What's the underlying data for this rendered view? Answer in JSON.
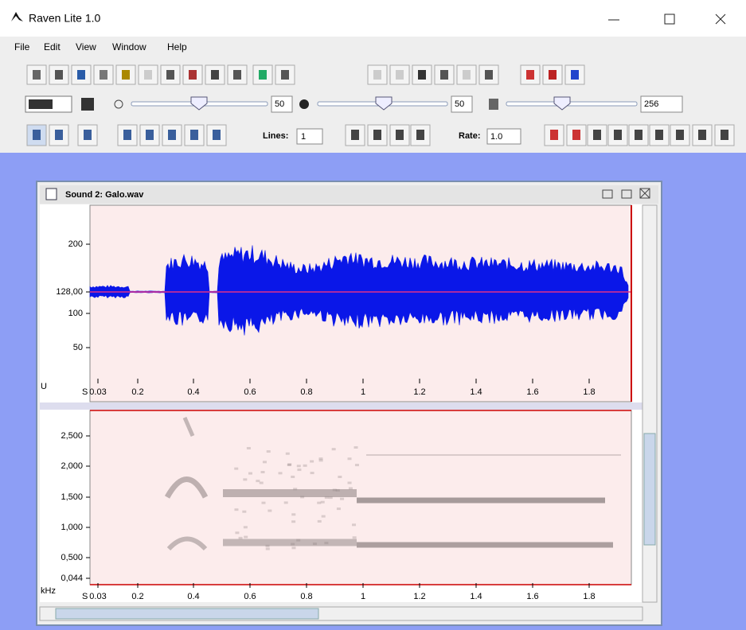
{
  "window": {
    "title": "Raven Lite 1.0"
  },
  "menu": [
    "File",
    "Edit",
    "View",
    "Window",
    "Help"
  ],
  "toolbar": {
    "brightness": "50",
    "contrast": "50",
    "resolution": "256",
    "lines_label": "Lines:",
    "lines": "1",
    "rate_label": "Rate:",
    "rate": "1.0"
  },
  "sound_window": {
    "title": "Sound 2: Galo.wav",
    "waveform": {
      "y_unit": "U",
      "y_ticks": [
        "200",
        "128,00",
        "100",
        "50"
      ],
      "x_unit": "S",
      "x_ticks": [
        "0.03",
        "0.2",
        "0.4",
        "0.6",
        "0.8",
        "1",
        "1.2",
        "1.4",
        "1.6",
        "1.8"
      ]
    },
    "spectrogram": {
      "y_unit": "kHz",
      "y_ticks": [
        "2,500",
        "2,000",
        "1,500",
        "1,000",
        "0,500",
        "0,044"
      ],
      "x_unit": "S",
      "x_ticks": [
        "0.03",
        "0.2",
        "0.4",
        "0.6",
        "0.8",
        "1",
        "1.2",
        "1.4",
        "1.6",
        "1.8"
      ]
    }
  }
}
